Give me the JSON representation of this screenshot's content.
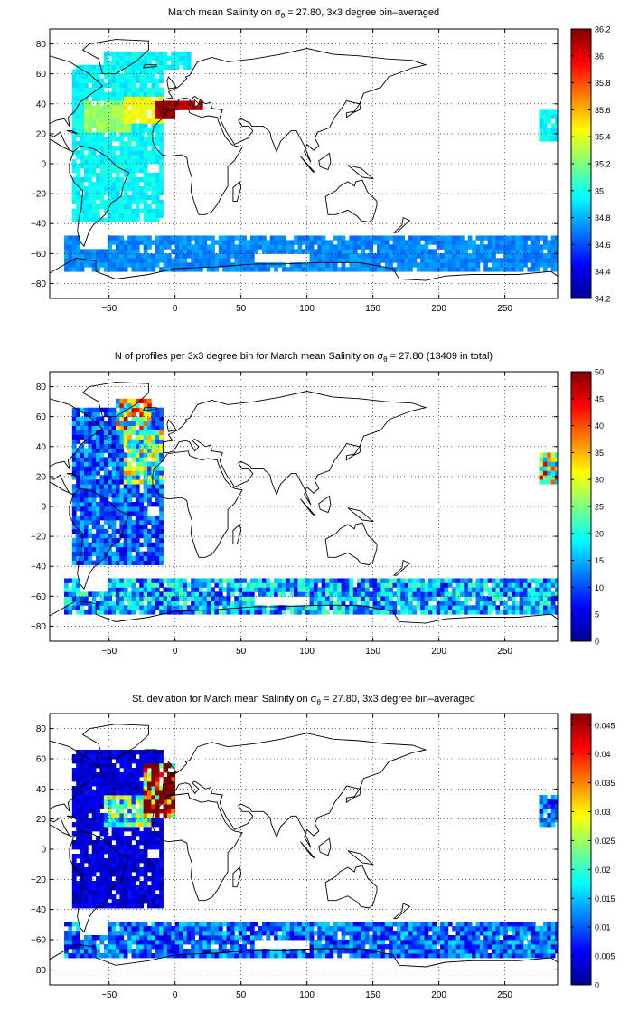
{
  "chart_data": [
    {
      "type": "heatmap",
      "title": "March mean Salinity on σθ = 27.80, 3x3 degree bin–averaged",
      "title_parts": {
        "pre": "March mean Salinity on σ",
        "sub": "θ",
        "post": " = 27.80, 3x3 degree bin–averaged"
      },
      "xlim": [
        -95,
        290
      ],
      "ylim": [
        -90,
        90
      ],
      "xticks": [
        -50,
        0,
        50,
        100,
        150,
        200,
        250
      ],
      "yticks": [
        80,
        60,
        40,
        20,
        0,
        -20,
        -40,
        -60,
        -80
      ],
      "grid": true,
      "colorbar": {
        "min": 34.2,
        "max": 36.2,
        "ticks": [
          36.2,
          36,
          35.8,
          35.6,
          35.4,
          35.2,
          35,
          34.8,
          34.6,
          34.4,
          34.2
        ],
        "labels": [
          "36.2",
          "36",
          "35.8",
          "35.6",
          "35.4",
          "35.2",
          "35",
          "34.8",
          "34.6",
          "34.4",
          "34.2"
        ]
      },
      "regions": [
        {
          "lon": [
            -80,
            -10
          ],
          "lat": [
            -40,
            65
          ],
          "value": 34.95
        },
        {
          "lon": [
            -70,
            -35
          ],
          "lat": [
            20,
            40
          ],
          "value": 35.25
        },
        {
          "lon": [
            -40,
            -10
          ],
          "lat": [
            25,
            45
          ],
          "value": 35.45
        },
        {
          "lon": [
            -15,
            0
          ],
          "lat": [
            30,
            42
          ],
          "value": 36.15
        },
        {
          "lon": [
            -5,
            20
          ],
          "lat": [
            35,
            42
          ],
          "value": 36.1
        },
        {
          "lon": [
            -55,
            10
          ],
          "lat": [
            62,
            75
          ],
          "value": 34.95
        },
        {
          "lon": [
            -85,
            290
          ],
          "lat": [
            -72,
            -50
          ],
          "value": 34.72
        },
        {
          "lon": [
            275,
            290
          ],
          "lat": [
            15,
            35
          ],
          "value": 34.95
        }
      ]
    },
    {
      "type": "heatmap",
      "title": "N of profiles per 3x3 degree bin for March mean Salinity on σθ = 27.80 (13409 in total)",
      "title_parts": {
        "pre": "N of profiles per 3x3 degree bin for March mean Salinity on σ",
        "sub": "θ",
        "post": " = 27.80 (13409 in total)"
      },
      "xlim": [
        -95,
        290
      ],
      "ylim": [
        -90,
        90
      ],
      "xticks": [
        -50,
        0,
        50,
        100,
        150,
        200,
        250
      ],
      "yticks": [
        80,
        60,
        40,
        20,
        0,
        -20,
        -40,
        -60,
        -80
      ],
      "grid": true,
      "total_profiles": 13409,
      "colorbar": {
        "min": 0,
        "max": 50,
        "ticks": [
          50,
          45,
          40,
          35,
          30,
          25,
          20,
          15,
          10,
          5,
          0
        ],
        "labels": [
          "50",
          "45",
          "40",
          "35",
          "30",
          "25",
          "20",
          "15",
          "10",
          "5",
          "0"
        ]
      },
      "regions": [
        {
          "lon": [
            -80,
            -10
          ],
          "lat": [
            -40,
            65
          ],
          "value": 10
        },
        {
          "lon": [
            -40,
            -10
          ],
          "lat": [
            15,
            50
          ],
          "value": 22
        },
        {
          "lon": [
            -45,
            -20
          ],
          "lat": [
            50,
            70
          ],
          "value": 28
        },
        {
          "lon": [
            -85,
            290
          ],
          "lat": [
            -72,
            -50
          ],
          "value": 14
        },
        {
          "lon": [
            275,
            290
          ],
          "lat": [
            15,
            35
          ],
          "value": 28
        }
      ]
    },
    {
      "type": "heatmap",
      "title": "St. deviation for March mean Salinity on σθ = 27.80, 3x3 degree bin–averaged",
      "title_parts": {
        "pre": "St. deviation for March mean Salinity on σ",
        "sub": "θ",
        "post": " = 27.80, 3x3 degree bin–averaged"
      },
      "xlim": [
        -95,
        290
      ],
      "ylim": [
        -90,
        90
      ],
      "xticks": [
        -50,
        0,
        50,
        100,
        150,
        200,
        250
      ],
      "yticks": [
        80,
        60,
        40,
        20,
        0,
        -20,
        -40,
        -60,
        -80
      ],
      "grid": true,
      "colorbar": {
        "min": 0,
        "max": 0.047,
        "ticks": [
          0.045,
          0.04,
          0.035,
          0.03,
          0.025,
          0.02,
          0.015,
          0.01,
          0.005,
          0
        ],
        "labels": [
          "0.045",
          "0.04",
          "0.035",
          "0.03",
          "0.025",
          "0.02",
          "0.015",
          "0.01",
          "0.005",
          "0"
        ]
      },
      "regions": [
        {
          "lon": [
            -80,
            -10
          ],
          "lat": [
            -40,
            65
          ],
          "value": 0.004
        },
        {
          "lon": [
            -55,
            -20
          ],
          "lat": [
            15,
            35
          ],
          "value": 0.02
        },
        {
          "lon": [
            -25,
            0
          ],
          "lat": [
            20,
            55
          ],
          "value": 0.046
        },
        {
          "lon": [
            -85,
            290
          ],
          "lat": [
            -72,
            -50
          ],
          "value": 0.01
        },
        {
          "lon": [
            275,
            290
          ],
          "lat": [
            15,
            35
          ],
          "value": 0.01
        }
      ]
    }
  ]
}
